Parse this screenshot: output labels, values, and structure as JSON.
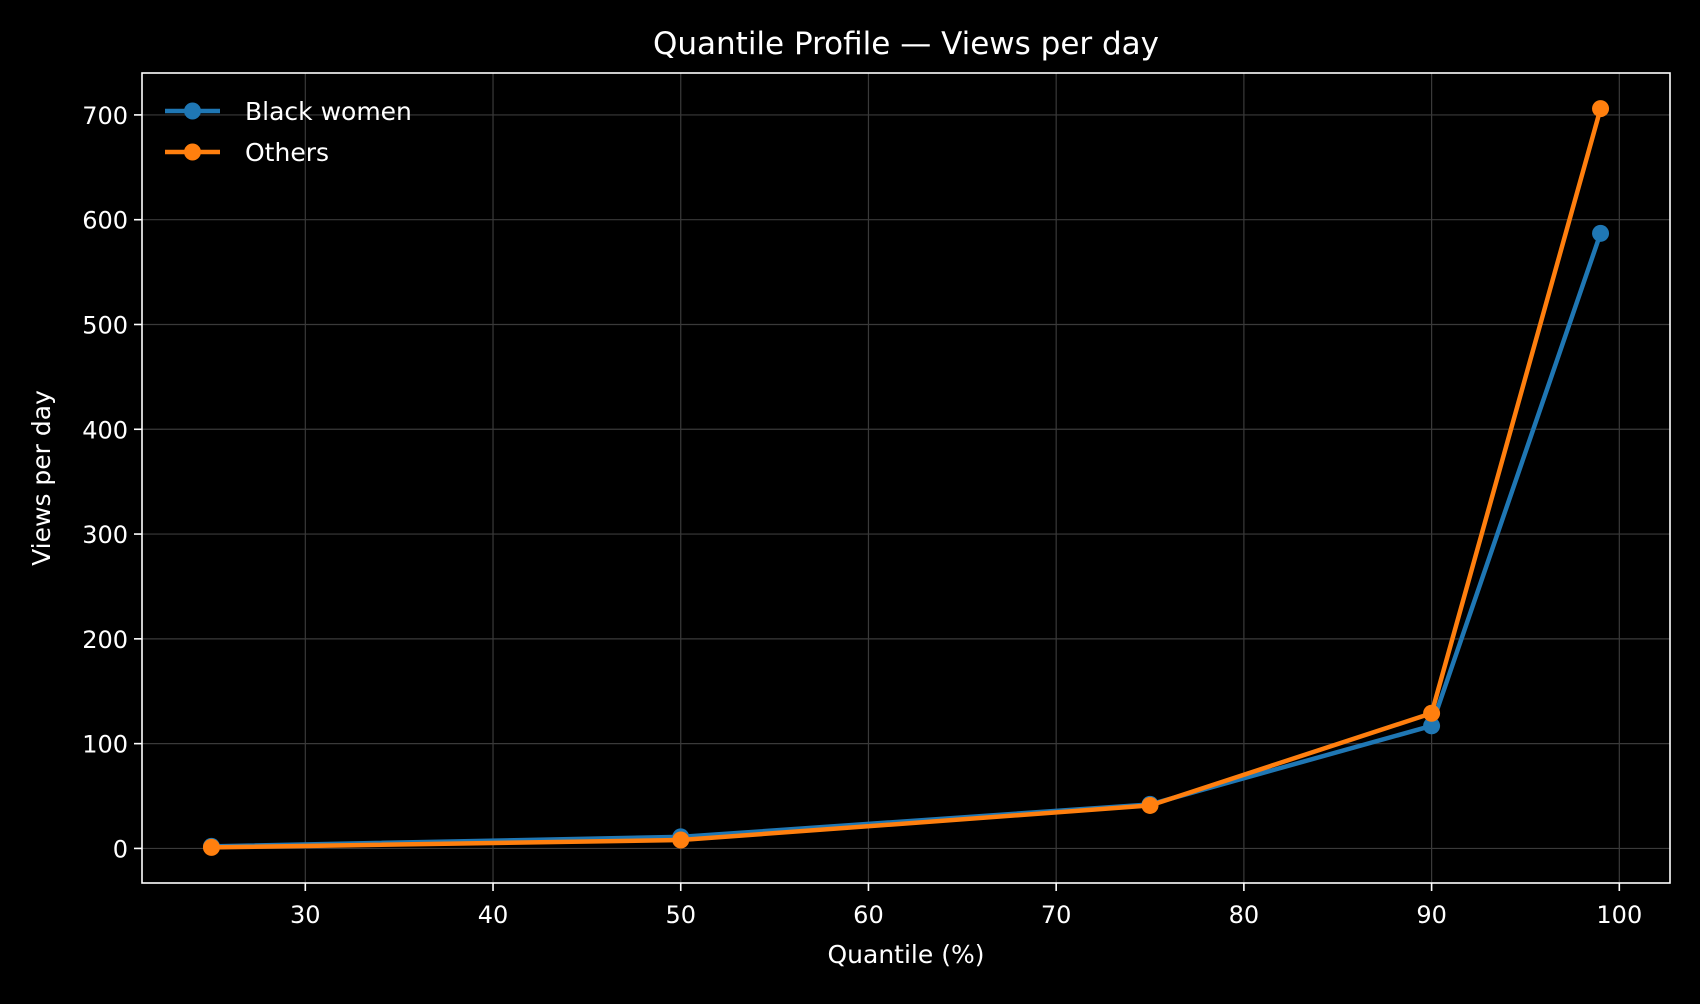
{
  "chart_data": {
    "type": "line",
    "title": "Quantile Profile — Views per day",
    "xlabel": "Quantile (%)",
    "ylabel": "Views per day",
    "xlim": [
      21.3,
      102.7
    ],
    "ylim": [
      -33,
      740
    ],
    "xticks": [
      30,
      40,
      50,
      60,
      70,
      80,
      90,
      100
    ],
    "yticks": [
      0,
      100,
      200,
      300,
      400,
      500,
      600,
      700
    ],
    "grid": true,
    "legend_position": "top-left",
    "x": [
      25,
      50,
      75,
      90,
      99
    ],
    "series": [
      {
        "name": "Black women",
        "color": "#1f77b4",
        "values": [
          2,
          11,
          42,
          117,
          587
        ]
      },
      {
        "name": "Others",
        "color": "#ff7f0e",
        "values": [
          1,
          8,
          41,
          129,
          706
        ]
      }
    ]
  },
  "colors": {
    "background": "#000000",
    "foreground": "#ffffff",
    "grid": "#3a3a3a"
  }
}
